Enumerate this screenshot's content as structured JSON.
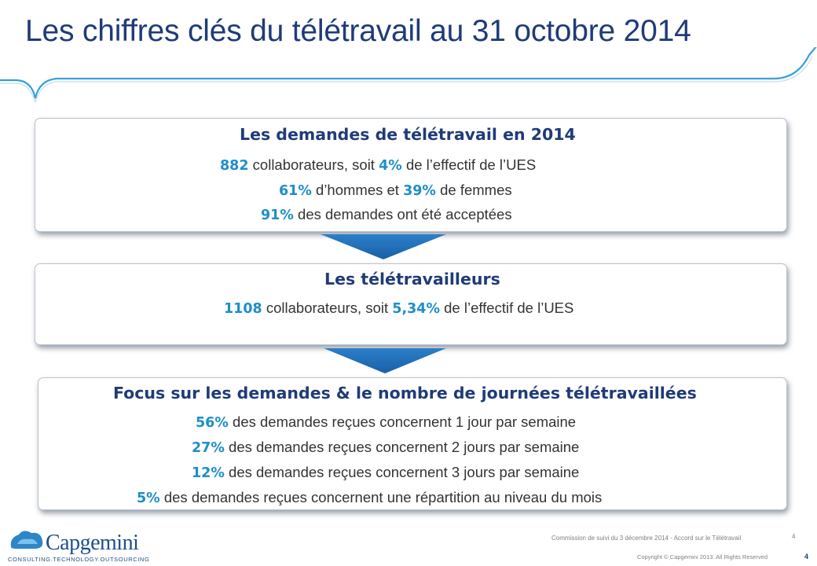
{
  "title": "Les chiffres clés du télétravail au 31 octobre 2014",
  "boxes": [
    {
      "title": "Les demandes de télétravail en 2014",
      "lines": [
        {
          "num": "882",
          "text": " collaborateurs, soit ",
          "num2": "4%",
          "text2": " de l’effectif de l’UES"
        },
        {
          "num": "61%",
          "text": " d’hommes et ",
          "num2": "39%",
          "text2": " de femmes"
        },
        {
          "num": "91%",
          "text": " des demandes ont été acceptées"
        }
      ]
    },
    {
      "title": "Les télétravailleurs",
      "lines": [
        {
          "num": "1108",
          "text": " collaborateurs, soit ",
          "num2": "5,34%",
          "text2": " de l’effectif de l’UES"
        }
      ]
    },
    {
      "title": "Focus sur les demandes & le nombre de journées télétravaillées",
      "lines": [
        {
          "num": "56%",
          "text": " des demandes reçues concernent 1 jour par semaine"
        },
        {
          "num": "27%",
          "text": " des demandes reçues concernent 2 jours par semaine"
        },
        {
          "num": "12%",
          "text": " des demandes reçues concernent 3 jours par semaine"
        },
        {
          "num": "5%",
          "text": " des demandes reçues concernent une répartition au niveau du mois"
        }
      ]
    }
  ],
  "logo": {
    "name": "Capgemini",
    "tagline": "CONSULTING.TECHNOLOGY.OUTSOURCING"
  },
  "footer": {
    "meeting": "Commission de suivi du 3 décembre 2014 - Accord sur le Télétravail",
    "slide_number_small": "4",
    "copyright": "Copyright © Capgemini 2013. All Rights Reserved",
    "page_number": "4"
  },
  "colors": {
    "title": "#1f3b78",
    "accent": "#1e8fc8",
    "arrow": "#1e6fb8",
    "swoosh": "#3a9fd8"
  },
  "icons": {
    "logo": "capgemini-spade-icon",
    "arrow": "chevron-down-arrow-icon"
  }
}
